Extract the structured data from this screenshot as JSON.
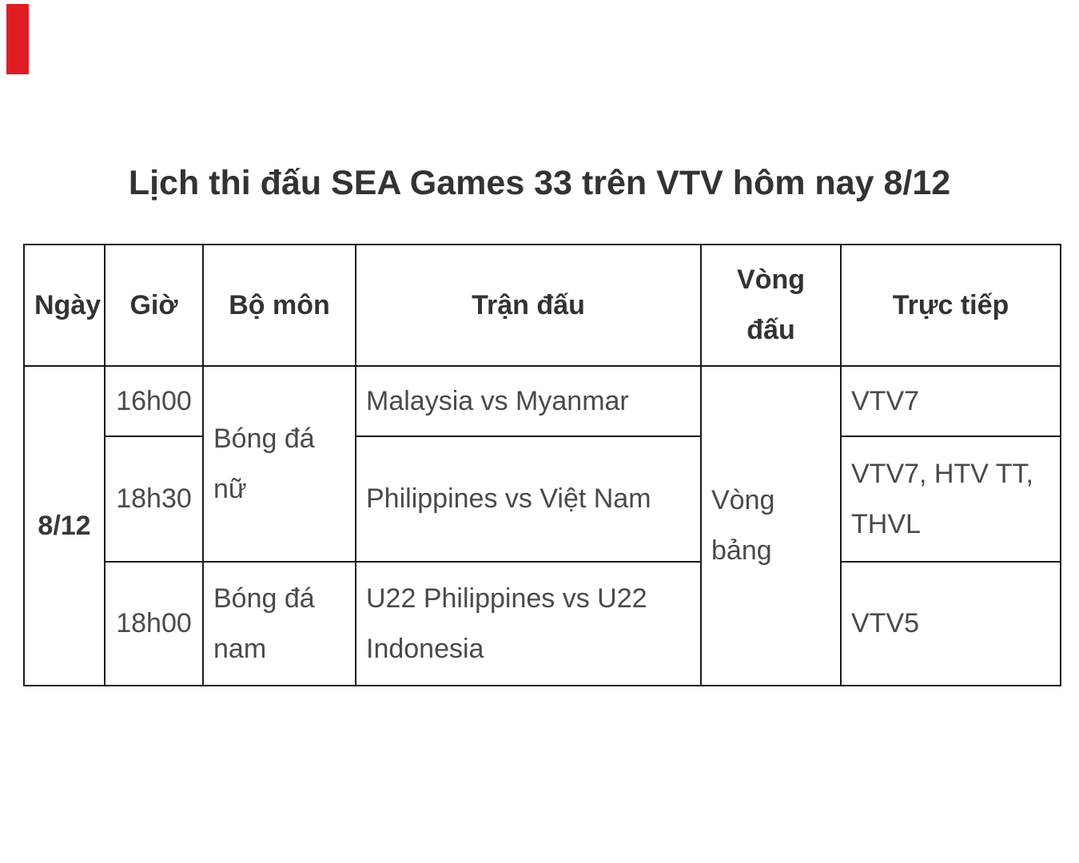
{
  "page": {
    "background_color": "#ffffff",
    "red_marker_color": "#e01d23"
  },
  "title": "Lịch thi đấu SEA Games 33 trên VTV hôm nay 8/12",
  "table": {
    "border_color": "#1a1a1a",
    "headers": [
      "Ngày",
      "Giờ",
      "Bộ môn",
      "Trận đấu",
      "Vòng đấu",
      "Trực tiếp"
    ],
    "date": "8/12",
    "round": "Vòng bảng",
    "rows": [
      {
        "time": "16h00",
        "sport": "Bóng đá nữ",
        "match": "Malaysia vs Myanmar",
        "channel": "VTV7"
      },
      {
        "time": "18h30",
        "match": "Philippines vs Việt Nam",
        "channel": "VTV7, HTV TT, THVL"
      },
      {
        "time": "18h00",
        "sport": "Bóng đá nam",
        "match": "U22 Philippines vs U22 Indonesia",
        "channel": "VTV5"
      }
    ]
  }
}
